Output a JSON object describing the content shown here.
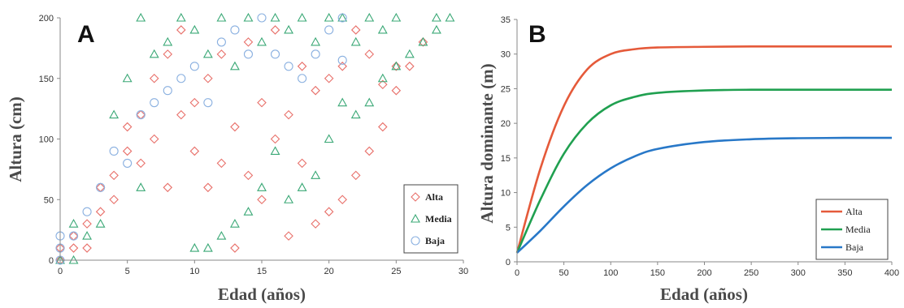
{
  "chart_data": [
    {
      "type": "scatter",
      "panel_label": "A",
      "xlabel": "Edad (años)",
      "ylabel": "Altura (cm)",
      "xlim": [
        0,
        30
      ],
      "ylim": [
        0,
        200
      ],
      "xticks": [
        "0",
        "5",
        "10",
        "15",
        "20",
        "25",
        "30"
      ],
      "yticks": [
        "0",
        "50",
        "100",
        "150",
        "200"
      ],
      "legend_position": "bottom-right",
      "series": [
        {
          "name": "Alta",
          "marker": "diamond",
          "color": "#e8706a",
          "points": [
            [
              0,
              0
            ],
            [
              0,
              10
            ],
            [
              1,
              10
            ],
            [
              1,
              20
            ],
            [
              2,
              10
            ],
            [
              2,
              30
            ],
            [
              3,
              40
            ],
            [
              3,
              60
            ],
            [
              4,
              50
            ],
            [
              4,
              70
            ],
            [
              5,
              90
            ],
            [
              5,
              110
            ],
            [
              6,
              80
            ],
            [
              6,
              120
            ],
            [
              7,
              100
            ],
            [
              7,
              150
            ],
            [
              8,
              60
            ],
            [
              8,
              170
            ],
            [
              9,
              120
            ],
            [
              9,
              190
            ],
            [
              10,
              90
            ],
            [
              10,
              130
            ],
            [
              11,
              60
            ],
            [
              11,
              150
            ],
            [
              12,
              80
            ],
            [
              12,
              170
            ],
            [
              13,
              10
            ],
            [
              13,
              110
            ],
            [
              14,
              70
            ],
            [
              14,
              180
            ],
            [
              15,
              50
            ],
            [
              15,
              130
            ],
            [
              16,
              100
            ],
            [
              16,
              190
            ],
            [
              17,
              20
            ],
            [
              17,
              120
            ],
            [
              18,
              80
            ],
            [
              18,
              160
            ],
            [
              19,
              30
            ],
            [
              19,
              140
            ],
            [
              20,
              40
            ],
            [
              20,
              150
            ],
            [
              21,
              50
            ],
            [
              21,
              160
            ],
            [
              22,
              70
            ],
            [
              22,
              190
            ],
            [
              23,
              90
            ],
            [
              23,
              170
            ],
            [
              24,
              110
            ],
            [
              24,
              145
            ],
            [
              25,
              140
            ],
            [
              25,
              160
            ],
            [
              26,
              160
            ],
            [
              27,
              180
            ]
          ]
        },
        {
          "name": "Media",
          "marker": "triangle",
          "color": "#3aa876",
          "points": [
            [
              0,
              0
            ],
            [
              1,
              0
            ],
            [
              1,
              30
            ],
            [
              2,
              20
            ],
            [
              3,
              30
            ],
            [
              4,
              120
            ],
            [
              5,
              150
            ],
            [
              6,
              200
            ],
            [
              6,
              60
            ],
            [
              7,
              170
            ],
            [
              8,
              180
            ],
            [
              9,
              200
            ],
            [
              10,
              10
            ],
            [
              10,
              190
            ],
            [
              11,
              10
            ],
            [
              11,
              170
            ],
            [
              12,
              20
            ],
            [
              12,
              200
            ],
            [
              13,
              30
            ],
            [
              13,
              160
            ],
            [
              14,
              40
            ],
            [
              14,
              200
            ],
            [
              15,
              60
            ],
            [
              15,
              180
            ],
            [
              16,
              90
            ],
            [
              16,
              200
            ],
            [
              17,
              50
            ],
            [
              17,
              190
            ],
            [
              18,
              60
            ],
            [
              18,
              200
            ],
            [
              19,
              70
            ],
            [
              19,
              180
            ],
            [
              20,
              100
            ],
            [
              20,
              200
            ],
            [
              21,
              130
            ],
            [
              21,
              200
            ],
            [
              22,
              120
            ],
            [
              22,
              180
            ],
            [
              23,
              130
            ],
            [
              23,
              200
            ],
            [
              24,
              150
            ],
            [
              24,
              190
            ],
            [
              25,
              160
            ],
            [
              25,
              200
            ],
            [
              26,
              170
            ],
            [
              27,
              180
            ],
            [
              28,
              190
            ],
            [
              28,
              200
            ],
            [
              29,
              200
            ]
          ]
        },
        {
          "name": "Baja",
          "marker": "circle",
          "color": "#8ab0e0",
          "points": [
            [
              0,
              0
            ],
            [
              0,
              10
            ],
            [
              0,
              20
            ],
            [
              1,
              20
            ],
            [
              2,
              40
            ],
            [
              3,
              60
            ],
            [
              4,
              90
            ],
            [
              5,
              80
            ],
            [
              6,
              120
            ],
            [
              7,
              130
            ],
            [
              8,
              140
            ],
            [
              9,
              150
            ],
            [
              10,
              160
            ],
            [
              11,
              130
            ],
            [
              12,
              180
            ],
            [
              13,
              190
            ],
            [
              14,
              170
            ],
            [
              15,
              200
            ],
            [
              16,
              170
            ],
            [
              17,
              160
            ],
            [
              18,
              150
            ],
            [
              19,
              170
            ],
            [
              20,
              190
            ],
            [
              21,
              200
            ],
            [
              21,
              165
            ]
          ]
        }
      ]
    },
    {
      "type": "line",
      "panel_label": "B",
      "xlabel": "Edad (años)",
      "ylabel": "Altura dominante (m)",
      "xlim": [
        0,
        400
      ],
      "ylim": [
        0,
        35
      ],
      "xticks": [
        "0",
        "50",
        "100",
        "150",
        "200",
        "250",
        "300",
        "350",
        "400"
      ],
      "yticks": [
        "0",
        "5",
        "10",
        "15",
        "20",
        "25",
        "30",
        "35"
      ],
      "legend_position": "bottom-right",
      "series": [
        {
          "name": "Alta",
          "color": "#e55a3a",
          "x": [
            0,
            25,
            50,
            75,
            100,
            125,
            150,
            200,
            250,
            300,
            350,
            400
          ],
          "y": [
            1.3,
            13.5,
            22.5,
            27.8,
            30.0,
            30.7,
            30.95,
            31.05,
            31.1,
            31.1,
            31.1,
            31.1
          ]
        },
        {
          "name": "Media",
          "color": "#20a050",
          "x": [
            0,
            25,
            50,
            75,
            100,
            125,
            150,
            200,
            250,
            300,
            350,
            400
          ],
          "y": [
            1.3,
            9.0,
            15.6,
            20.0,
            22.6,
            23.8,
            24.4,
            24.75,
            24.85,
            24.85,
            24.85,
            24.85
          ]
        },
        {
          "name": "Baja",
          "color": "#2878c8",
          "x": [
            0,
            25,
            50,
            75,
            100,
            125,
            150,
            200,
            250,
            300,
            350,
            400
          ],
          "y": [
            1.3,
            4.5,
            8.0,
            11.1,
            13.5,
            15.2,
            16.3,
            17.3,
            17.7,
            17.85,
            17.9,
            17.9
          ]
        }
      ]
    }
  ]
}
